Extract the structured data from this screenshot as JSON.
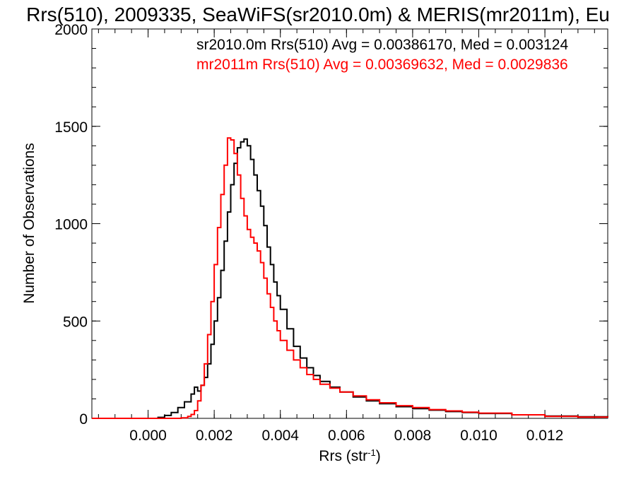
{
  "chart_data": {
    "type": "line",
    "title": "Rrs(510), 2009335, SeaWiFS(sr2010.0m) & MERIS(mr2011m), Eu",
    "xlabel": "Rrs (str",
    "xlabel_sup": "-1",
    "xlabel_close": ")",
    "ylabel": "Number of Observations",
    "xlim": [
      -0.0017,
      0.0139
    ],
    "ylim": [
      0,
      2000
    ],
    "xticks": [
      0.0,
      0.002,
      0.004,
      0.006,
      0.008,
      0.01,
      0.012
    ],
    "xtick_labels": [
      "0.000",
      "0.002",
      "0.004",
      "0.006",
      "0.008",
      "0.010",
      "0.012"
    ],
    "yticks": [
      0,
      500,
      1000,
      1500,
      2000
    ],
    "ytick_labels": [
      "0",
      "500",
      "1000",
      "1500",
      "2000"
    ],
    "x_minor_step": 0.0005,
    "y_minor_step": 100,
    "grid": false,
    "legend_position": "top-right",
    "series": [
      {
        "legend": "sr2010.0m Rrs(510) Avg = 0.00386170, Med = 0.003124",
        "color": "#000000",
        "step": true,
        "points": [
          [
            -0.0017,
            0
          ],
          [
            0.0,
            0
          ],
          [
            0.0003,
            5
          ],
          [
            0.0005,
            15
          ],
          [
            0.0007,
            30
          ],
          [
            0.0009,
            55
          ],
          [
            0.0011,
            85
          ],
          [
            0.0013,
            125
          ],
          [
            0.0014,
            160
          ],
          [
            0.0015,
            140
          ],
          [
            0.0016,
            170
          ],
          [
            0.0017,
            210
          ],
          [
            0.0018,
            280
          ],
          [
            0.0019,
            380
          ],
          [
            0.002,
            500
          ],
          [
            0.0021,
            620
          ],
          [
            0.0022,
            760
          ],
          [
            0.0023,
            910
          ],
          [
            0.0024,
            1060
          ],
          [
            0.0025,
            1200
          ],
          [
            0.0026,
            1310
          ],
          [
            0.0027,
            1390
          ],
          [
            0.0028,
            1420
          ],
          [
            0.0029,
            1435
          ],
          [
            0.003,
            1400
          ],
          [
            0.0031,
            1330
          ],
          [
            0.0032,
            1250
          ],
          [
            0.0033,
            1170
          ],
          [
            0.0034,
            1090
          ],
          [
            0.0035,
            990
          ],
          [
            0.0036,
            880
          ],
          [
            0.0037,
            790
          ],
          [
            0.0038,
            700
          ],
          [
            0.0039,
            630
          ],
          [
            0.004,
            560
          ],
          [
            0.0042,
            460
          ],
          [
            0.0044,
            370
          ],
          [
            0.0046,
            310
          ],
          [
            0.0048,
            260
          ],
          [
            0.005,
            220
          ],
          [
            0.0052,
            190
          ],
          [
            0.0055,
            160
          ],
          [
            0.0058,
            135
          ],
          [
            0.0062,
            110
          ],
          [
            0.0066,
            90
          ],
          [
            0.007,
            75
          ],
          [
            0.0075,
            60
          ],
          [
            0.008,
            50
          ],
          [
            0.0085,
            42
          ],
          [
            0.009,
            35
          ],
          [
            0.0095,
            30
          ],
          [
            0.01,
            25
          ],
          [
            0.011,
            18
          ],
          [
            0.012,
            12
          ],
          [
            0.013,
            8
          ],
          [
            0.0139,
            5
          ]
        ]
      },
      {
        "legend": "mr2011m Rrs(510) Avg = 0.00369632, Med = 0.0029836",
        "color": "#ff0000",
        "step": true,
        "points": [
          [
            -0.0017,
            0
          ],
          [
            0.0008,
            0
          ],
          [
            0.001,
            3
          ],
          [
            0.0012,
            10
          ],
          [
            0.0013,
            20
          ],
          [
            0.0014,
            40
          ],
          [
            0.0015,
            90
          ],
          [
            0.0016,
            170
          ],
          [
            0.0017,
            280
          ],
          [
            0.0018,
            430
          ],
          [
            0.0019,
            600
          ],
          [
            0.002,
            790
          ],
          [
            0.0021,
            980
          ],
          [
            0.0022,
            1150
          ],
          [
            0.0023,
            1300
          ],
          [
            0.0024,
            1440
          ],
          [
            0.0025,
            1430
          ],
          [
            0.0026,
            1360
          ],
          [
            0.0027,
            1250
          ],
          [
            0.0028,
            1130
          ],
          [
            0.0029,
            1040
          ],
          [
            0.003,
            970
          ],
          [
            0.0031,
            930
          ],
          [
            0.0032,
            900
          ],
          [
            0.0033,
            860
          ],
          [
            0.0034,
            800
          ],
          [
            0.0035,
            720
          ],
          [
            0.0036,
            640
          ],
          [
            0.0037,
            570
          ],
          [
            0.0038,
            500
          ],
          [
            0.0039,
            450
          ],
          [
            0.004,
            400
          ],
          [
            0.0042,
            350
          ],
          [
            0.0044,
            300
          ],
          [
            0.0046,
            260
          ],
          [
            0.0048,
            225
          ],
          [
            0.005,
            200
          ],
          [
            0.0052,
            175
          ],
          [
            0.0055,
            155
          ],
          [
            0.0058,
            135
          ],
          [
            0.0062,
            115
          ],
          [
            0.0066,
            95
          ],
          [
            0.007,
            80
          ],
          [
            0.0075,
            65
          ],
          [
            0.008,
            55
          ],
          [
            0.0085,
            45
          ],
          [
            0.009,
            38
          ],
          [
            0.0095,
            32
          ],
          [
            0.01,
            27
          ],
          [
            0.011,
            18
          ],
          [
            0.012,
            10
          ],
          [
            0.013,
            6
          ],
          [
            0.0139,
            4
          ]
        ]
      }
    ]
  }
}
